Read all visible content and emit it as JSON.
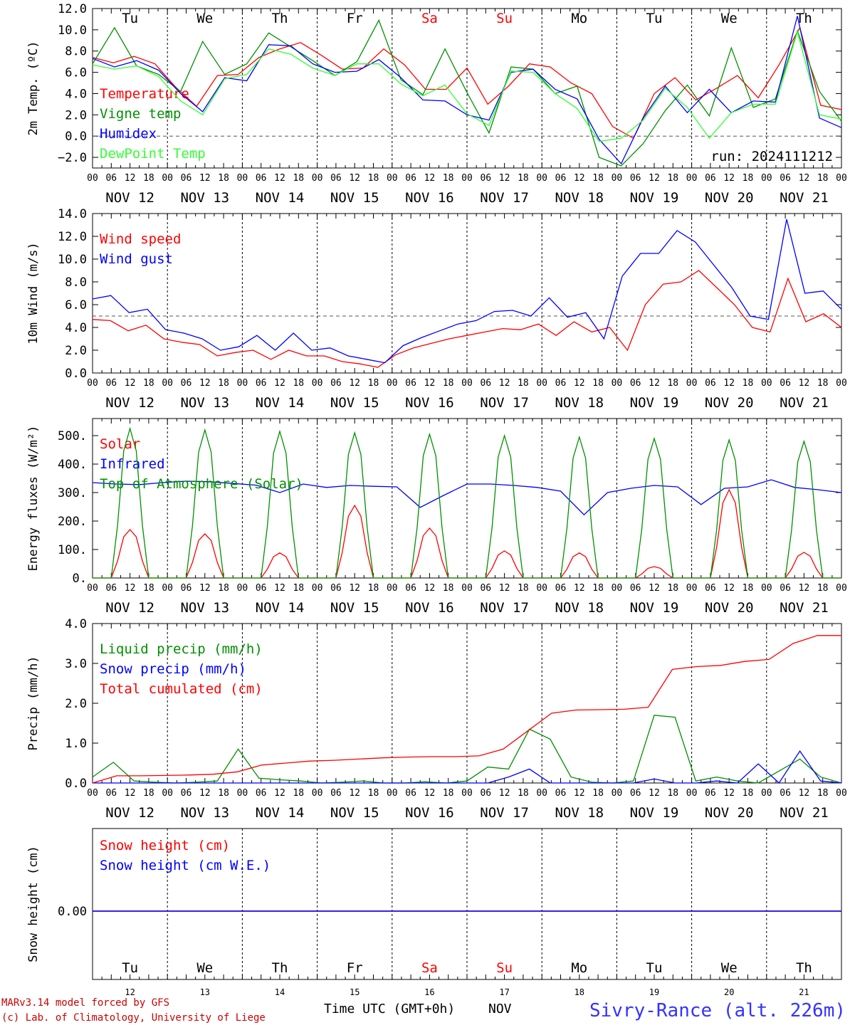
{
  "colors": {
    "red": "#ff0000",
    "green": "#009000",
    "lightgreen": "#33ff33",
    "blue": "#0000ff",
    "purple": "#7f007f",
    "weekend": "#ff0000",
    "footer_blue": "#3333ff",
    "footer_red": "#cc0000",
    "axis": "#000000"
  },
  "x_axis": {
    "day_labels": [
      "NOV 12",
      "NOV 13",
      "NOV 14",
      "NOV 15",
      "NOV 16",
      "NOV 17",
      "NOV 18",
      "NOV 19",
      "NOV 20",
      "NOV 21"
    ],
    "hour_labels": [
      "00",
      "06",
      "12",
      "18"
    ],
    "final_hour_label": "00",
    "weekdays": [
      "Tu",
      "We",
      "Th",
      "Fr",
      "Sa",
      "Su",
      "Mo",
      "Tu",
      "We",
      "Th"
    ],
    "weekend_flags": [
      false,
      false,
      false,
      false,
      true,
      true,
      false,
      false,
      false,
      false
    ],
    "bottom_day_numbers": [
      "12",
      "13",
      "14",
      "15",
      "16",
      "17",
      "18",
      "19",
      "20",
      "21"
    ],
    "title": "Time UTC (GMT+0h)",
    "month": "NOV",
    "range_hours": [
      0,
      240
    ]
  },
  "footer": {
    "model": "MARv3.14 model forced by GFS",
    "copyright": "(c) Lab. of Climatology, University of Liege",
    "station": "Sivry-Rance (alt. 226m)"
  },
  "chart_data": [
    {
      "type": "line",
      "ylabel": "2m Temp. (ºC)",
      "yticks": [
        "12.0",
        "10.0",
        "8.0",
        "6.0",
        "4.0",
        "2.0",
        "0.0",
        "−2.0"
      ],
      "ylim": [
        -3,
        12
      ],
      "reference_line": 0.0,
      "annotation": "run: 2024111212",
      "x_hours": [
        0,
        6,
        12,
        18,
        24,
        30,
        36,
        42,
        48,
        54,
        60,
        66,
        72,
        78,
        84,
        90,
        96,
        102,
        108,
        114,
        120,
        126,
        132,
        138,
        144,
        150,
        156,
        162,
        168,
        174,
        180,
        186,
        192,
        198,
        204,
        210,
        216,
        222,
        228,
        234,
        240
      ],
      "series": [
        {
          "name": "Temperature",
          "color": "#ff0000",
          "values": [
            7.4,
            6.9,
            7.5,
            6.8,
            4.6,
            2.8,
            5.7,
            5.8,
            7.4,
            8.2,
            8.8,
            7.6,
            6.3,
            6.4,
            8.2,
            6.7,
            4.4,
            4.4,
            6.4,
            3.0,
            4.7,
            6.8,
            6.5,
            5.0,
            4.0,
            0.9,
            -0.2,
            4.0,
            5.5,
            3.4,
            4.5,
            5.7,
            3.6,
            6.7,
            10.2,
            2.9,
            2.5
          ]
        },
        {
          "name": "Vigne temp",
          "color": "#009000",
          "values": [
            6.8,
            10.2,
            6.6,
            5.8,
            4.2,
            8.9,
            5.8,
            6.8,
            9.7,
            8.4,
            7.1,
            5.7,
            7.0,
            10.9,
            5.3,
            3.9,
            8.2,
            4.1,
            0.3,
            6.5,
            6.3,
            4.0,
            4.7,
            -2.0,
            -2.8,
            -0.7,
            2.4,
            4.8,
            1.9,
            8.3,
            2.7,
            3.5,
            9.9,
            4.2,
            1.4
          ]
        },
        {
          "name": "Humidex",
          "color": "#0000ff",
          "values": [
            7.3,
            6.5,
            7.1,
            6.2,
            4.0,
            2.3,
            5.5,
            5.2,
            8.6,
            8.5,
            6.8,
            6.0,
            6.1,
            7.2,
            5.5,
            3.4,
            3.3,
            2.0,
            1.5,
            6.0,
            6.3,
            4.4,
            3.5,
            -0.3,
            -2.6,
            1.7,
            4.7,
            2.2,
            4.4,
            2.2,
            3.3,
            3.2,
            11.3,
            1.7,
            0.8
          ]
        },
        {
          "name": "DewPoint Temp",
          "color": "#33ff33",
          "values": [
            6.7,
            6.3,
            6.6,
            5.6,
            3.3,
            2.0,
            5.4,
            5.8,
            8.2,
            7.7,
            6.4,
            5.7,
            6.8,
            6.8,
            4.9,
            3.8,
            4.8,
            2.1,
            1.0,
            6.1,
            6.0,
            4.0,
            2.6,
            -0.5,
            -0.2,
            1.5,
            4.5,
            2.7,
            -0.2,
            2.2,
            3.0,
            3.0,
            9.8,
            2.0,
            1.6
          ]
        }
      ]
    },
    {
      "type": "line",
      "ylabel": "10m Wind (m/s)",
      "yticks": [
        "14.0",
        "12.0",
        "10.0",
        "8.0",
        "6.0",
        "4.0",
        "2.0",
        "0.0"
      ],
      "ylim": [
        0,
        14
      ],
      "reference_line": 5.0,
      "series": [
        {
          "name": "Wind speed",
          "color": "#ff0000",
          "values": [
            4.7,
            4.6,
            3.7,
            4.2,
            3.0,
            2.7,
            2.5,
            1.5,
            1.8,
            2.0,
            1.2,
            2.0,
            1.5,
            1.5,
            1.0,
            0.8,
            0.5,
            1.6,
            2.2,
            2.6,
            3.0,
            3.3,
            3.6,
            3.9,
            3.8,
            4.3,
            3.3,
            4.5,
            3.6,
            4.0,
            2.0,
            6.0,
            7.8,
            8.0,
            9.0,
            7.5,
            6.0,
            4.0,
            3.6,
            8.3,
            4.5,
            5.2,
            4.0
          ]
        },
        {
          "name": "Wind gust",
          "color": "#0000ff",
          "values": [
            6.5,
            6.8,
            5.3,
            5.6,
            3.8,
            3.5,
            3.0,
            2.0,
            2.3,
            3.3,
            2.0,
            3.5,
            2.0,
            2.2,
            1.5,
            1.2,
            0.9,
            2.4,
            3.1,
            3.7,
            4.3,
            4.6,
            5.4,
            5.5,
            5.0,
            6.6,
            4.9,
            5.3,
            3.0,
            8.5,
            10.5,
            10.5,
            12.5,
            11.5,
            9.5,
            7.5,
            5.0,
            4.7,
            13.5,
            7.0,
            7.2,
            5.6
          ]
        }
      ]
    },
    {
      "type": "line",
      "ylabel": "Energy fluxes (W/m²)",
      "yticks": [
        "500.",
        "400.",
        "300.",
        "200.",
        "100.",
        "0."
      ],
      "ylim": [
        0,
        560
      ],
      "series": [
        {
          "name": "Solar",
          "color": "#ff0000",
          "peaks": [
            170,
            155,
            88,
            255,
            175,
            95,
            88,
            40,
            310,
            90
          ]
        },
        {
          "name": "Infrared",
          "color": "#0000ff",
          "values": [
            335,
            330,
            328,
            335,
            340,
            338,
            332,
            326,
            300,
            330,
            318,
            325,
            322,
            320,
            248,
            290,
            330,
            330,
            325,
            318,
            305,
            222,
            300,
            315,
            325,
            320,
            258,
            315,
            320,
            345,
            318,
            310,
            300
          ]
        },
        {
          "name": "Top of Atmosphere (Solar)",
          "color": "#009000",
          "peaks": [
            525,
            520,
            515,
            510,
            505,
            500,
            495,
            490,
            485,
            480
          ]
        }
      ]
    },
    {
      "type": "line",
      "ylabel": "Precip (mm/h)",
      "yticks": [
        "4.0",
        "3.0",
        "2.0",
        "1.0",
        "0.0"
      ],
      "ylim": [
        0,
        4
      ],
      "series": [
        {
          "name": "Liquid precip (mm/h)",
          "color": "#009000",
          "values": [
            0.15,
            0.52,
            0.05,
            0.02,
            0.0,
            0.02,
            0.05,
            0.85,
            0.12,
            0.08,
            0.05,
            0.0,
            0.02,
            0.05,
            0.0,
            0.0,
            0.03,
            0.0,
            0.05,
            0.4,
            0.35,
            1.35,
            1.1,
            0.15,
            0.02,
            0.0,
            0.05,
            1.7,
            1.65,
            0.05,
            0.15,
            0.05,
            0.0,
            0.3,
            0.6,
            0.15,
            0.0
          ]
        },
        {
          "name": "Snow precip (mm/h)",
          "color": "#0000ff",
          "values": [
            0.0,
            0.0,
            0.0,
            0.0,
            0.0,
            0.0,
            0.0,
            0.0,
            0.0,
            0.0,
            0.0,
            0.0,
            0.0,
            0.0,
            0.0,
            0.0,
            0.0,
            0.0,
            0.0,
            0.0,
            0.15,
            0.35,
            0.0,
            0.0,
            0.0,
            0.0,
            0.0,
            0.1,
            0.0,
            0.0,
            0.05,
            0.0,
            0.48,
            0.0,
            0.8,
            0.05,
            0.0
          ]
        },
        {
          "name": "Total cumulated (cm)",
          "color": "#ff0000",
          "values": [
            0.0,
            0.18,
            0.18,
            0.19,
            0.2,
            0.22,
            0.28,
            0.45,
            0.5,
            0.55,
            0.57,
            0.6,
            0.63,
            0.65,
            0.66,
            0.66,
            0.68,
            0.85,
            1.3,
            1.75,
            1.83,
            1.84,
            1.85,
            1.9,
            2.85,
            2.92,
            2.95,
            3.05,
            3.1,
            3.5,
            3.7,
            3.7
          ]
        }
      ]
    },
    {
      "type": "line",
      "ylabel": "Snow height (cm)",
      "yticks": [
        "0.00"
      ],
      "series": [
        {
          "name": "Snow height (cm)",
          "color": "#ff0000",
          "values": [
            0.0,
            0.0
          ]
        },
        {
          "name": "Snow height (cm W.E.)",
          "color": "#0000ff",
          "values": [
            0.0,
            0.0
          ]
        }
      ]
    }
  ]
}
